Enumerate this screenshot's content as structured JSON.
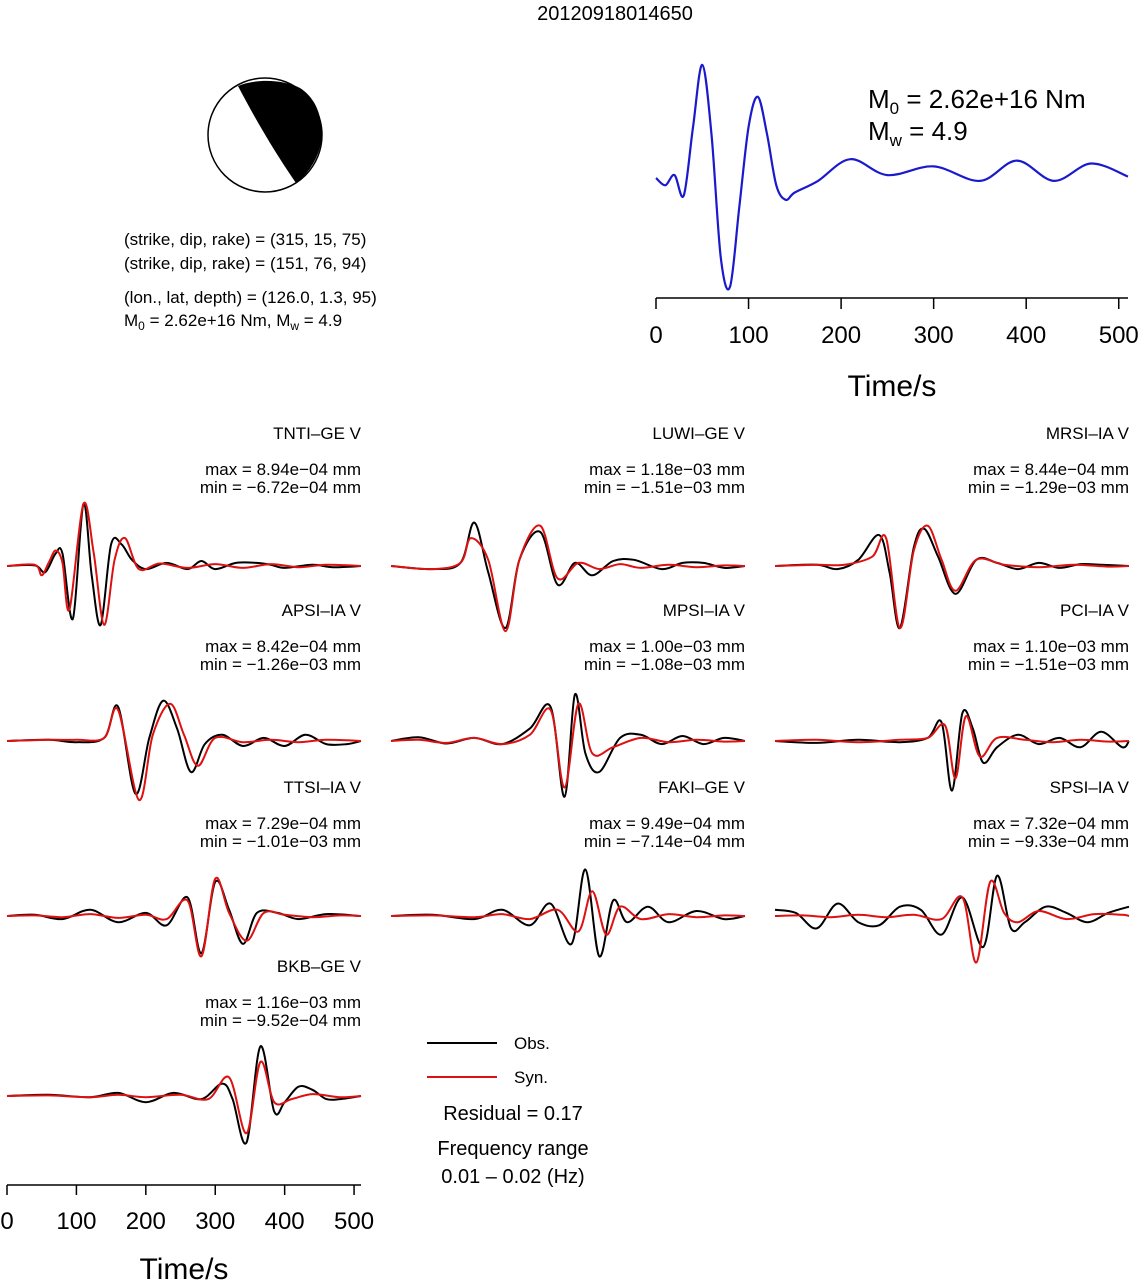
{
  "title": "20120918014650",
  "beachball": {
    "planes": [
      "(strike, dip, rake) = (315, 15, 75)",
      "(strike, dip, rake) = (151, 76, 94)"
    ],
    "location": "(lon., lat, depth) = (126.0, 1.3, 95)",
    "moment_prefix": "M",
    "moment_sub": "0",
    "moment_value": " = 2.62e+16 Nm, M",
    "mag_sub": "w",
    "mag_value": " = 4.9"
  },
  "stf": {
    "m0_prefix": "M",
    "m0_sub": "0",
    "m0_value": " = 2.62e+16 Nm",
    "mw_prefix": "M",
    "mw_sub": "w",
    "mw_value": " = 4.9",
    "xlabel": "Time/s",
    "ticks": [
      "0",
      "100",
      "200",
      "300",
      "400",
      "500"
    ]
  },
  "stations": [
    {
      "name": "TNTI–GE V",
      "max": "max = 8.94e−04 mm",
      "min": "min = −6.72e−04 mm"
    },
    {
      "name": "LUWI–GE V",
      "max": "max = 1.18e−03 mm",
      "min": "min = −1.51e−03 mm"
    },
    {
      "name": "MRSI–IA V",
      "max": "max = 8.44e−04 mm",
      "min": "min = −1.29e−03 mm"
    },
    {
      "name": "APSI–IA V",
      "max": "max = 8.42e−04 mm",
      "min": "min = −1.26e−03 mm"
    },
    {
      "name": "MPSI–IA V",
      "max": "max = 1.00e−03 mm",
      "min": "min = −1.08e−03 mm"
    },
    {
      "name": "PCI–IA V",
      "max": "max = 1.10e−03 mm",
      "min": "min = −1.51e−03 mm"
    },
    {
      "name": "TTSI–IA V",
      "max": "max = 7.29e−04 mm",
      "min": "min = −1.01e−03 mm"
    },
    {
      "name": "FAKI–GE V",
      "max": "max = 9.49e−04 mm",
      "min": "min = −7.14e−04 mm"
    },
    {
      "name": "SPSI–IA V",
      "max": "max = 7.32e−04 mm",
      "min": "min = −9.33e−04 mm"
    },
    {
      "name": "BKB–GE V",
      "max": "max = 1.16e−03 mm",
      "min": "min = −9.52e−04 mm"
    }
  ],
  "waveform_axis": {
    "xlabel": "Time/s",
    "ticks": [
      "0",
      "100",
      "200",
      "300",
      "400",
      "500"
    ]
  },
  "legend": {
    "obs": "Obs.",
    "syn": "Syn."
  },
  "residual": "Residual = 0.17",
  "freq_label": "Frequency range",
  "freq_value": "0.01 – 0.02 (Hz)",
  "colors": {
    "observed": "#000000",
    "synthetic": "#dd1111",
    "stf": "#1a1acc",
    "beachball_fill": "#000000"
  },
  "chart_data": {
    "type": "line",
    "source_time_function": {
      "x": [
        0,
        10,
        20,
        30,
        40,
        50,
        60,
        70,
        80,
        90,
        100,
        110,
        120,
        130,
        140,
        150,
        175,
        210,
        250,
        300,
        350,
        390,
        430,
        470,
        510
      ],
      "y": [
        0,
        -0.05,
        0.02,
        -0.12,
        0.35,
        0.78,
        0.3,
        -0.55,
        -0.75,
        -0.2,
        0.35,
        0.56,
        0.3,
        -0.05,
        -0.15,
        -0.1,
        -0.02,
        0.13,
        0.02,
        0.08,
        -0.02,
        0.12,
        -0.02,
        0.1,
        0.01
      ],
      "xlim": [
        0,
        510
      ]
    },
    "waveforms_xlim": [
      0,
      510
    ],
    "waveforms": [
      {
        "station": "TNTI–GE V",
        "obs": {
          "x": [
            0,
            40,
            55,
            70,
            80,
            95,
            110,
            122,
            135,
            150,
            165,
            180,
            200,
            230,
            260,
            280,
            300,
            330,
            360,
            380,
            400,
            440,
            470,
            510
          ],
          "y": [
            0,
            0.01,
            -0.1,
            0.2,
            0.2,
            -0.85,
            1.0,
            -0.15,
            -0.95,
            0.35,
            0.35,
            0.1,
            -0.05,
            0.05,
            -0.05,
            0.08,
            -0.05,
            0.05,
            0.05,
            0.02,
            -0.03,
            0.02,
            -0.02,
            0
          ]
        },
        "syn": {
          "x": [
            0,
            40,
            50,
            60,
            70,
            80,
            90,
            110,
            125,
            140,
            155,
            170,
            190,
            220,
            260,
            300,
            340,
            380,
            420,
            460,
            510
          ],
          "y": [
            0,
            0.02,
            -0.15,
            0.05,
            0.25,
            0.05,
            -0.7,
            1.0,
            0.2,
            -0.95,
            0.1,
            0.45,
            -0.05,
            0.04,
            -0.03,
            0.03,
            -0.03,
            0.03,
            -0.02,
            0.02,
            0
          ]
        }
      },
      {
        "station": "LUWI–GE V",
        "obs": {
          "x": [
            0,
            60,
            100,
            120,
            140,
            165,
            185,
            215,
            240,
            265,
            290,
            320,
            350,
            390,
            420,
            450,
            480,
            510
          ],
          "y": [
            0,
            -0.05,
            0.05,
            0.7,
            -0.1,
            -1.0,
            0.1,
            0.55,
            -0.3,
            0.05,
            -0.15,
            0.08,
            0.1,
            -0.05,
            0.05,
            0.05,
            -0.03,
            0
          ]
        },
        "syn": {
          "x": [
            0,
            60,
            100,
            115,
            140,
            165,
            185,
            215,
            240,
            270,
            300,
            330,
            360,
            400,
            440,
            480,
            510
          ],
          "y": [
            0,
            -0.05,
            0.05,
            0.45,
            0.1,
            -1.05,
            0.1,
            0.65,
            -0.2,
            0.05,
            -0.05,
            0.03,
            -0.03,
            0.02,
            -0.02,
            0.01,
            0
          ]
        }
      },
      {
        "station": "MRSI–IA V",
        "obs": {
          "x": [
            0,
            60,
            90,
            120,
            150,
            165,
            180,
            200,
            215,
            235,
            260,
            290,
            320,
            350,
            380,
            410,
            440,
            470,
            510
          ],
          "y": [
            0,
            0.02,
            -0.05,
            0.1,
            0.5,
            -0.1,
            -1.0,
            0.3,
            0.6,
            0.15,
            -0.45,
            0.1,
            0.05,
            -0.05,
            0.05,
            -0.03,
            0.03,
            0.02,
            0
          ]
        },
        "syn": {
          "x": [
            0,
            60,
            100,
            140,
            160,
            180,
            200,
            220,
            240,
            260,
            290,
            330,
            380,
            430,
            480,
            510
          ],
          "y": [
            0,
            0.02,
            0.02,
            0.15,
            0.45,
            -1.0,
            0.25,
            0.65,
            0.1,
            -0.4,
            0.1,
            0.02,
            -0.02,
            0.02,
            -0.01,
            0
          ]
        }
      },
      {
        "station": "APSI–IA V",
        "obs": {
          "x": [
            0,
            60,
            100,
            140,
            160,
            185,
            205,
            225,
            245,
            265,
            285,
            310,
            340,
            370,
            400,
            430,
            460,
            490,
            510
          ],
          "y": [
            0,
            0.02,
            -0.02,
            0.05,
            0.55,
            -0.85,
            0.05,
            0.65,
            0.2,
            -0.5,
            -0.05,
            0.1,
            -0.08,
            0.05,
            -0.08,
            0.1,
            -0.05,
            -0.05,
            0
          ]
        },
        "syn": {
          "x": [
            0,
            60,
            100,
            140,
            160,
            190,
            210,
            235,
            255,
            275,
            300,
            340,
            380,
            420,
            460,
            510
          ],
          "y": [
            0,
            0.02,
            0.02,
            0.05,
            0.5,
            -0.95,
            0.1,
            0.6,
            0.1,
            -0.4,
            0.05,
            -0.02,
            0.02,
            -0.02,
            0.02,
            0
          ]
        }
      },
      {
        "station": "MPSI–IA V",
        "obs": {
          "x": [
            0,
            40,
            80,
            120,
            160,
            200,
            230,
            250,
            265,
            280,
            300,
            330,
            360,
            390,
            420,
            450,
            480,
            510
          ],
          "y": [
            0,
            0.06,
            -0.04,
            0.05,
            -0.05,
            0.2,
            0.55,
            -0.9,
            0.75,
            -0.2,
            -0.5,
            0.05,
            0.1,
            -0.05,
            0.08,
            -0.05,
            0.05,
            0
          ]
        },
        "syn": {
          "x": [
            0,
            40,
            80,
            120,
            160,
            200,
            230,
            250,
            270,
            290,
            320,
            360,
            400,
            440,
            480,
            510
          ],
          "y": [
            0,
            0.02,
            -0.03,
            0.05,
            -0.05,
            0.1,
            0.5,
            -0.75,
            0.6,
            -0.2,
            -0.1,
            0.05,
            -0.02,
            0.02,
            -0.01,
            0
          ]
        }
      },
      {
        "station": "PCI–IA V",
        "obs": {
          "x": [
            0,
            60,
            120,
            180,
            220,
            240,
            255,
            270,
            285,
            300,
            320,
            350,
            380,
            410,
            440,
            470,
            500,
            510
          ],
          "y": [
            0,
            -0.03,
            0.02,
            -0.02,
            0.05,
            0.3,
            -0.8,
            0.45,
            0.2,
            -0.35,
            -0.1,
            0.1,
            -0.05,
            0.05,
            -0.1,
            0.15,
            -0.1,
            0
          ]
        },
        "syn": {
          "x": [
            0,
            60,
            120,
            180,
            220,
            245,
            260,
            275,
            295,
            320,
            360,
            400,
            440,
            480,
            510
          ],
          "y": [
            0,
            0.02,
            -0.02,
            0.02,
            0.05,
            0.25,
            -0.6,
            0.4,
            -0.25,
            0.05,
            0.02,
            -0.02,
            0.02,
            -0.01,
            0
          ]
        }
      },
      {
        "station": "TTSI–IA V",
        "obs": {
          "x": [
            0,
            40,
            80,
            120,
            160,
            200,
            230,
            260,
            280,
            300,
            320,
            340,
            360,
            390,
            420,
            460,
            510
          ],
          "y": [
            0,
            0.02,
            -0.05,
            0.1,
            -0.1,
            0.05,
            -0.15,
            0.3,
            -0.6,
            0.55,
            0.1,
            -0.45,
            0.05,
            0.05,
            -0.05,
            0.03,
            0
          ]
        },
        "syn": {
          "x": [
            0,
            40,
            80,
            120,
            160,
            200,
            230,
            260,
            280,
            300,
            320,
            345,
            370,
            400,
            440,
            480,
            510
          ],
          "y": [
            0,
            0.01,
            -0.02,
            0.03,
            -0.03,
            0.02,
            -0.05,
            0.25,
            -0.65,
            0.6,
            0.05,
            -0.4,
            0.05,
            0.02,
            -0.02,
            0.01,
            0
          ]
        }
      },
      {
        "station": "FAKI–GE V",
        "obs": {
          "x": [
            0,
            60,
            120,
            160,
            200,
            230,
            260,
            280,
            300,
            320,
            340,
            370,
            400,
            440,
            480,
            510
          ],
          "y": [
            0,
            0.02,
            -0.05,
            0.1,
            -0.15,
            0.2,
            -0.45,
            0.75,
            -0.65,
            0.25,
            -0.1,
            0.15,
            -0.1,
            0.08,
            -0.05,
            0
          ]
        },
        "syn": {
          "x": [
            0,
            60,
            120,
            160,
            200,
            240,
            270,
            290,
            310,
            330,
            360,
            400,
            440,
            480,
            510
          ],
          "y": [
            0,
            0.01,
            -0.02,
            0.03,
            -0.05,
            0.1,
            -0.25,
            0.4,
            -0.3,
            0.15,
            -0.05,
            0.03,
            -0.02,
            0.01,
            0
          ]
        }
      },
      {
        "station": "SPSI–IA V",
        "obs": {
          "x": [
            0,
            30,
            60,
            90,
            120,
            150,
            180,
            210,
            240,
            270,
            300,
            320,
            340,
            360,
            390,
            420,
            450,
            480,
            510
          ],
          "y": [
            0.1,
            0.05,
            -0.2,
            0.2,
            -0.1,
            -0.15,
            0.15,
            0.1,
            -0.3,
            0.3,
            -0.5,
            0.65,
            -0.2,
            -0.1,
            0.15,
            0.05,
            -0.1,
            0.05,
            0.15
          ]
        },
        "syn": {
          "x": [
            0,
            40,
            80,
            120,
            160,
            200,
            240,
            270,
            290,
            310,
            330,
            350,
            380,
            420,
            460,
            500,
            510
          ],
          "y": [
            0,
            0.01,
            -0.02,
            0.02,
            -0.02,
            0.02,
            -0.05,
            0.3,
            -0.75,
            0.55,
            0.05,
            -0.1,
            0.08,
            -0.05,
            0.03,
            0.02,
            0
          ]
        }
      },
      {
        "station": "BKB–GE V",
        "obs": {
          "x": [
            0,
            60,
            120,
            160,
            200,
            240,
            280,
            310,
            325,
            345,
            365,
            385,
            400,
            420,
            440,
            460,
            480,
            510
          ],
          "y": [
            0,
            0.02,
            -0.02,
            0.05,
            -0.1,
            0.05,
            -0.05,
            0.2,
            -0.05,
            -0.75,
            0.8,
            -0.25,
            -0.1,
            0.15,
            0.1,
            -0.05,
            -0.05,
            0
          ]
        },
        "syn": {
          "x": [
            0,
            60,
            120,
            160,
            200,
            250,
            290,
            320,
            345,
            365,
            385,
            410,
            440,
            480,
            510
          ],
          "y": [
            0,
            0.01,
            -0.02,
            0.02,
            -0.02,
            0.02,
            -0.05,
            0.3,
            -0.6,
            0.55,
            -0.1,
            -0.05,
            0.03,
            -0.02,
            0
          ]
        }
      }
    ]
  }
}
